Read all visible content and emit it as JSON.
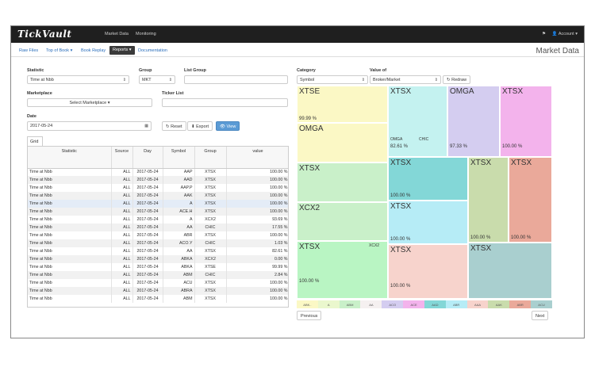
{
  "app": {
    "brand": "TickVault"
  },
  "topnav": {
    "market_data": "Market Data",
    "monitoring": "Monitoring",
    "flag_icon": "⚑",
    "account": "👤 Account ▾"
  },
  "subnav": {
    "raw_files": "Raw Files",
    "top_of_book": "Top of Book ▾",
    "book_replay": "Book Replay",
    "reports": "Reports ▾",
    "documentation": "Documentation"
  },
  "page_title": "Market Data",
  "form": {
    "statistic_label": "Statistic",
    "statistic_value": "Time at Nbb",
    "group_label": "Group",
    "group_value": "MKT",
    "list_group_label": "List Group",
    "list_group_value": "",
    "marketplace_label": "Marketplace",
    "marketplace_value": "Select Marketplace ▾",
    "ticker_list_label": "Ticker List",
    "ticker_list_value": "",
    "date_label": "Date",
    "date_value": "2017-05-24",
    "reset": "↻ Reset",
    "export": "⬇ Export",
    "view": "👁 View"
  },
  "grid_tab": "Grid",
  "table": {
    "headers": [
      "Statistic",
      "Source",
      "Day",
      "Symbol",
      "Group",
      "value"
    ],
    "rows": [
      [
        "Time at Nbb",
        "ALL",
        "2017-05-24",
        "AAP",
        "XTSX",
        "100.00 %"
      ],
      [
        "Time at Nbb",
        "ALL",
        "2017-05-24",
        "AAD",
        "XTSX",
        "100.00 %"
      ],
      [
        "Time at Nbb",
        "ALL",
        "2017-05-24",
        "AAP.P",
        "XTSX",
        "100.00 %"
      ],
      [
        "Time at Nbb",
        "ALL",
        "2017-05-24",
        "AAK",
        "XTSX",
        "100.00 %"
      ],
      [
        "Time at Nbb",
        "ALL",
        "2017-05-24",
        "A",
        "XTSX",
        "100.00 %"
      ],
      [
        "Time at Nbb",
        "ALL",
        "2017-05-24",
        "ACE.H",
        "XTSX",
        "100.00 %"
      ],
      [
        "Time at Nbb",
        "ALL",
        "2017-05-24",
        "A",
        "XCX2",
        "93.69 %"
      ],
      [
        "Time at Nbb",
        "ALL",
        "2017-05-24",
        "AA",
        "CHIC",
        "17.55 %"
      ],
      [
        "Time at Nbb",
        "ALL",
        "2017-05-24",
        "ABR",
        "XTSX",
        "100.00 %"
      ],
      [
        "Time at Nbb",
        "ALL",
        "2017-05-24",
        "ACO.Y",
        "CHIC",
        "1.03 %"
      ],
      [
        "Time at Nbb",
        "ALL",
        "2017-05-24",
        "AA",
        "XTSX",
        "82.61 %"
      ],
      [
        "Time at Nbb",
        "ALL",
        "2017-05-24",
        "ABKA",
        "XCX2",
        "0.00 %"
      ],
      [
        "Time at Nbb",
        "ALL",
        "2017-05-24",
        "ABKA",
        "XTSE",
        "99.99 %"
      ],
      [
        "Time at Nbb",
        "ALL",
        "2017-05-24",
        "ABM",
        "CHIC",
        "2.84 %"
      ],
      [
        "Time at Nbb",
        "ALL",
        "2017-05-24",
        "ACU",
        "XTSX",
        "100.00 %"
      ],
      [
        "Time at Nbb",
        "ALL",
        "2017-05-24",
        "ABRA",
        "XTSX",
        "100.00 %"
      ],
      [
        "Time at Nbb",
        "ALL",
        "2017-05-24",
        "ABM",
        "XTSX",
        "100.00 %"
      ]
    ]
  },
  "chart_controls": {
    "category_label": "Category",
    "category_value": "Symbol",
    "value_of_label": "Value of",
    "value_of_value": "Broker/Market",
    "redraw": "↻ Redraw"
  },
  "treemap": {
    "tiles": [
      {
        "name": "XTSE",
        "pct": "99.99 %",
        "color": "#fbf8c5"
      },
      {
        "name": "OMGA",
        "pct": "99.97 %",
        "color": "#fbf8c5"
      },
      {
        "name": "XTSX",
        "pct": "",
        "color": "#c9f0c9"
      },
      {
        "name": "XCX2",
        "pct": "93.69 %",
        "color": "#c9f0c9"
      },
      {
        "name": "XTSX",
        "pct": "100.00 %",
        "color": "#b9f5c3",
        "sub": "XCX2"
      },
      {
        "name": "XTSX",
        "pct": "82.61 %",
        "color": "#c4f2f0",
        "sub1": "OMGA",
        "sub2": "CHIC"
      },
      {
        "name": "OMGA",
        "pct": "97.33 %",
        "color": "#d4cdf0"
      },
      {
        "name": "XTSX",
        "pct": "100.00 %",
        "color": "#f3b3ec"
      },
      {
        "name": "XTSX",
        "pct": "100.00 %",
        "color": "#83d7d7"
      },
      {
        "name": "XTSX",
        "pct": "100.00 %",
        "color": "#c9dcac"
      },
      {
        "name": "XTSX",
        "pct": "100.00 %",
        "color": "#eaa99a"
      },
      {
        "name": "XTSX",
        "pct": "100.00 %",
        "color": "#b6ecf6"
      },
      {
        "name": "XTSX",
        "pct": "100.00 %",
        "color": "#f7d3cc"
      },
      {
        "name": "XTSX",
        "pct": "",
        "color": "#a9cfcf"
      }
    ],
    "legend": [
      {
        "label": "ABK..",
        "color": "#fbf8c5"
      },
      {
        "label": "A",
        "color": "#eaf7cd"
      },
      {
        "label": "ABM",
        "color": "#c9f0c9"
      },
      {
        "label": "AA",
        "color": "#f5f0f0"
      },
      {
        "label": "ACO",
        "color": "#d4cdf0"
      },
      {
        "label": "ACE",
        "color": "#f3b3ec"
      },
      {
        "label": "AAD",
        "color": "#83d7d7"
      },
      {
        "label": "ABR",
        "color": "#b6ecf6"
      },
      {
        "label": "AAA",
        "color": "#f7d3cc"
      },
      {
        "label": "AAK",
        "color": "#c9dcac"
      },
      {
        "label": "ABR",
        "color": "#eaa99a"
      },
      {
        "label": "ACU",
        "color": "#a9cfcf"
      }
    ]
  },
  "pager": {
    "previous": "Previous",
    "next": "Next"
  }
}
